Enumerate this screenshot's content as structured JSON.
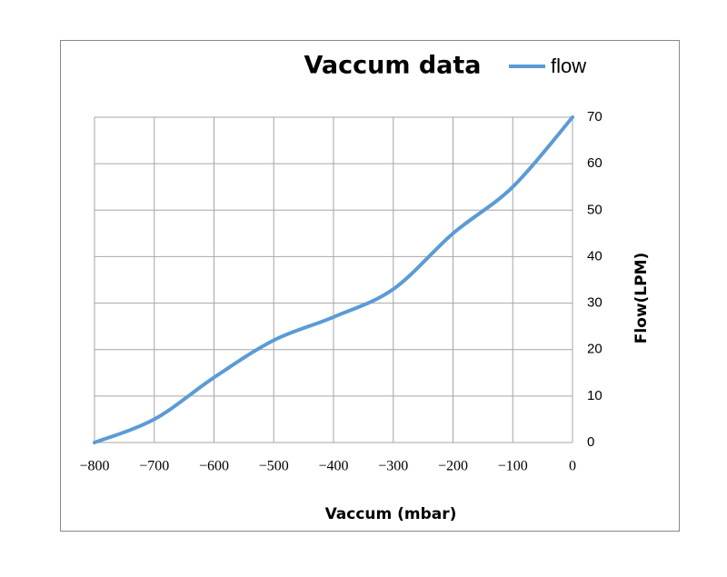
{
  "chart_data": {
    "type": "line",
    "title": "Vaccum data",
    "x_label": "Vaccum (mbar)",
    "y_label": "Flow(LPM)",
    "x": [
      -800,
      -700,
      -600,
      -500,
      -400,
      -300,
      -200,
      -100,
      0
    ],
    "series": [
      {
        "name": "flow",
        "color": "#5b9bd5",
        "values": [
          0,
          5,
          14,
          22,
          27,
          33,
          45,
          55,
          70
        ]
      }
    ],
    "xlim": [
      -800,
      0
    ],
    "xticks": [
      {
        "value": -800,
        "label": "−800"
      },
      {
        "value": -700,
        "label": "−700"
      },
      {
        "value": -600,
        "label": "−600"
      },
      {
        "value": -500,
        "label": "−500"
      },
      {
        "value": -400,
        "label": "−400"
      },
      {
        "value": -300,
        "label": "−300"
      },
      {
        "value": -200,
        "label": "−200"
      },
      {
        "value": -100,
        "label": "−100"
      },
      0
    ],
    "ylim": [
      0,
      70
    ],
    "yticks": [
      0,
      10,
      20,
      30,
      40,
      50,
      60,
      70
    ],
    "y_axis_side": "right",
    "grid": true,
    "smooth": true
  }
}
